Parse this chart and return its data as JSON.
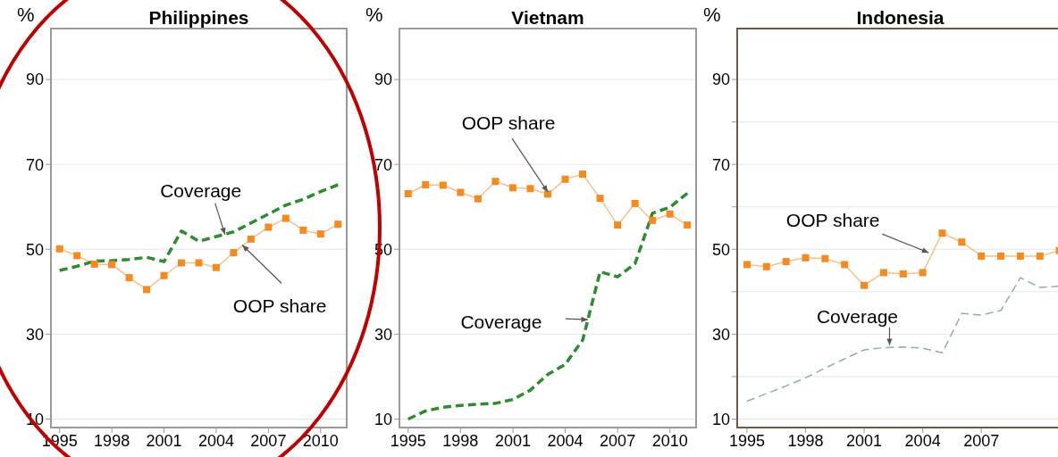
{
  "chart_data": [
    {
      "type": "line",
      "title": "Philippines",
      "ylabel": "%",
      "x": [
        1995,
        1996,
        1997,
        1998,
        1999,
        2000,
        2001,
        2002,
        2003,
        2004,
        2005,
        2006,
        2007,
        2008,
        2009,
        2010,
        2011
      ],
      "xlim": [
        1994.5,
        2011.5
      ],
      "xticks": [
        1995,
        1998,
        2001,
        2004,
        2007,
        2010
      ],
      "ylim": [
        8,
        102
      ],
      "yticks": [
        10,
        30,
        50,
        70,
        90
      ],
      "grid": "y",
      "legend": false,
      "series": [
        {
          "color": "#f58a1f",
          "marker": "square",
          "line_style": "solid",
          "values": [
            50.1,
            48.5,
            46.5,
            46.4,
            43.3,
            40.5,
            43.8,
            46.8,
            46.8,
            45.7,
            49.2,
            52.4,
            55.2,
            57.3,
            54.5,
            53.6,
            55.9
          ]
        },
        {
          "color": "#2e8b2e",
          "marker": "none",
          "line_style": "dashed",
          "values": [
            45,
            46,
            47.2,
            47.3,
            47.6,
            48.1,
            47.1,
            54.3,
            51.9,
            53,
            54.1,
            56.2,
            58.3,
            60.4,
            61.8,
            63.6,
            65.2
          ]
        }
      ],
      "annotations": [
        {
          "text": "Coverage",
          "x": 2004.5,
          "y": 53.5
        },
        {
          "text": "OOP share",
          "x": 2005.5,
          "y": 51
        }
      ]
    },
    {
      "type": "line",
      "title": "Vietnam",
      "ylabel": "%",
      "x": [
        1995,
        1996,
        1997,
        1998,
        1999,
        2000,
        2001,
        2002,
        2003,
        2004,
        2005,
        2006,
        2007,
        2008,
        2009,
        2010,
        2011
      ],
      "xlim": [
        1994.5,
        2011.5
      ],
      "xticks": [
        1995,
        1998,
        2001,
        2004,
        2007,
        2010
      ],
      "ylim": [
        8,
        102
      ],
      "yticks": [
        10,
        30,
        50,
        70,
        90
      ],
      "grid": "y",
      "legend": false,
      "series": [
        {
          "color": "#f58a1f",
          "marker": "square",
          "line_style": "solid",
          "values": [
            63.1,
            65.2,
            65.1,
            63.4,
            61.9,
            66,
            64.5,
            64.3,
            63,
            66.5,
            67.7,
            62,
            55.7,
            60.8,
            56.8,
            58.3,
            55.7
          ]
        },
        {
          "color": "#2e8b2e",
          "marker": "none",
          "line_style": "dashed",
          "values": [
            10,
            11.9,
            12.8,
            13.2,
            13.5,
            13.7,
            14.6,
            16.8,
            20.5,
            22.9,
            28.6,
            44.7,
            43.5,
            46.6,
            58.5,
            59.9,
            63.2
          ]
        }
      ],
      "annotations": [
        {
          "text": "OOP share",
          "x": 2003,
          "y": 63.5
        },
        {
          "text": "Coverage",
          "x": 2005.3,
          "y": 33.4
        }
      ]
    },
    {
      "type": "line",
      "title": "Indonesia",
      "ylabel": "%",
      "x": [
        1995,
        1996,
        1997,
        1998,
        1999,
        2000,
        2001,
        2002,
        2003,
        2004,
        2005,
        2006,
        2007,
        2008,
        2009,
        2010,
        2011
      ],
      "xlim": [
        1994.5,
        2011.2
      ],
      "xticks": [
        1995,
        1998,
        2001,
        2004,
        2007
      ],
      "ylim": [
        8,
        102
      ],
      "yticks": [
        10,
        {
          "value": 20,
          "label": null
        },
        30,
        {
          "value": 40,
          "label": null
        },
        50,
        {
          "value": 60,
          "label": null
        },
        70,
        {
          "value": 80,
          "label": null
        },
        90
      ],
      "grid": "y",
      "legend": false,
      "series": [
        {
          "color": "#f58a1f",
          "marker": "square",
          "line_style": "solid",
          "values": [
            46.4,
            45.9,
            47.1,
            48,
            47.8,
            46.4,
            41.5,
            44.5,
            44.2,
            44.5,
            53.8,
            51.7,
            48.4,
            48.4,
            48.4,
            48.4,
            49.7
          ]
        },
        {
          "color": "#8fb0a0",
          "marker": "none",
          "line_style": "dashed",
          "values": [
            14.2,
            16,
            17.8,
            19.7,
            22,
            24.2,
            26.3,
            26.8,
            27,
            26.7,
            25.6,
            34.9,
            34.5,
            35.6,
            43.3,
            41,
            41.3
          ]
        }
      ],
      "annotations": [
        {
          "text": "OOP share",
          "x": 2004.3,
          "y": 49.2
        },
        {
          "text": "Coverage",
          "x": 2002.3,
          "y": 27.4
        }
      ]
    }
  ]
}
